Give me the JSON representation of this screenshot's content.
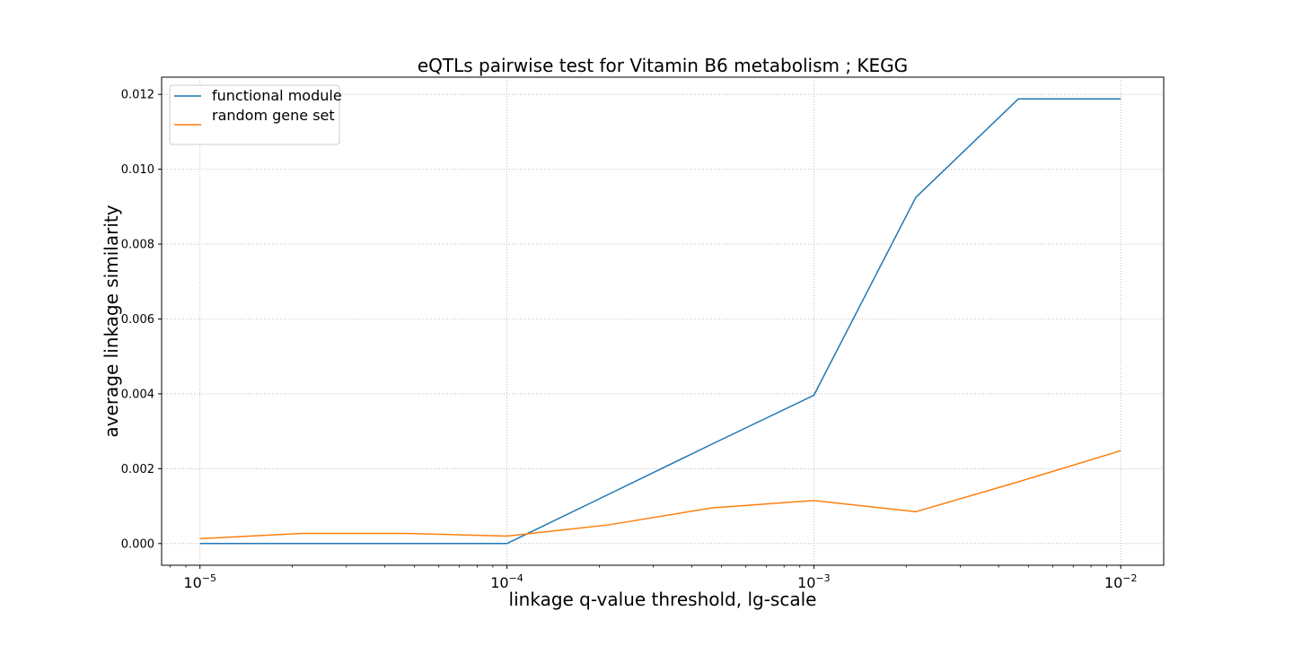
{
  "chart_data": {
    "type": "line",
    "title": "eQTLs pairwise test for Vitamin B6 metabolism ; KEGG",
    "xlabel": "linkage q-value threshold, lg-scale",
    "ylabel": "average linkage similarity",
    "xscale": "log",
    "xlim": [
      7.5e-06,
      0.0138
    ],
    "ylim": [
      -0.00058,
      0.01246
    ],
    "grid": true,
    "legend_position": "top-left",
    "yticks": [
      {
        "value": 0.0,
        "label": "0.000"
      },
      {
        "value": 0.002,
        "label": "0.002"
      },
      {
        "value": 0.004,
        "label": "0.004"
      },
      {
        "value": 0.006,
        "label": "0.006"
      },
      {
        "value": 0.008,
        "label": "0.008"
      },
      {
        "value": 0.01,
        "label": "0.010"
      },
      {
        "value": 0.012,
        "label": "0.012"
      }
    ],
    "xticks": [
      {
        "value": 1e-05,
        "base": "10",
        "exp": "−5"
      },
      {
        "value": 0.0001,
        "base": "10",
        "exp": "−4"
      },
      {
        "value": 0.001,
        "base": "10",
        "exp": "−3"
      },
      {
        "value": 0.01,
        "base": "10",
        "exp": "−2"
      }
    ],
    "x": [
      1e-05,
      2.15e-05,
      4.64e-05,
      0.0001,
      0.000215,
      0.000464,
      0.001,
      0.00215,
      0.00464,
      0.01
    ],
    "series": [
      {
        "name": "functional module",
        "color": "#1f77b4",
        "values": [
          0.0,
          0.0,
          0.0,
          0.0,
          0.00132,
          0.00265,
          0.00396,
          0.00925,
          0.01188,
          0.01188
        ]
      },
      {
        "name": "random gene set",
        "color": "#ff7f0e",
        "values": [
          0.00013,
          0.00027,
          0.00027,
          0.0002,
          0.0005,
          0.00095,
          0.00115,
          0.00085,
          0.00165,
          0.00248
        ]
      }
    ]
  }
}
